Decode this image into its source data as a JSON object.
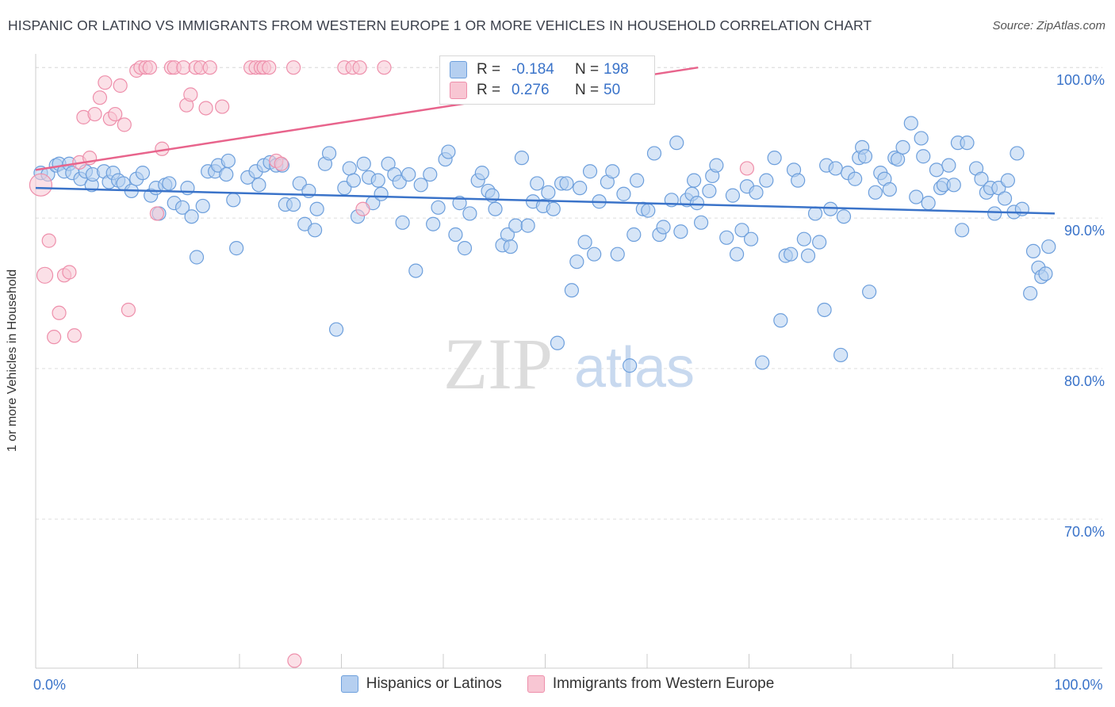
{
  "title": "HISPANIC OR LATINO VS IMMIGRANTS FROM WESTERN EUROPE 1 OR MORE VEHICLES IN HOUSEHOLD CORRELATION CHART",
  "source": "Source: ZipAtlas.com",
  "y_axis_label": "1 or more Vehicles in Household",
  "watermark": {
    "zip": "ZIP",
    "atlas": "atlas"
  },
  "legend_box": {
    "rows": [
      {
        "r_label": "R =",
        "r_value": "-0.184",
        "n_label": "N =",
        "n_value": "198",
        "color": "#6d9fdc"
      },
      {
        "r_label": "R =",
        "r_value": "0.276",
        "n_label": "N =",
        "n_value": "50",
        "color": "#ee8fab"
      }
    ]
  },
  "legend_bottom": {
    "blue": "Hispanics or Latinos",
    "pink": "Immigrants from Western Europe"
  },
  "chart_data": {
    "type": "scatter",
    "title": "HISPANIC OR LATINO VS IMMIGRANTS FROM WESTERN EUROPE 1 OR MORE VEHICLES IN HOUSEHOLD CORRELATION CHART",
    "xlabel": "",
    "ylabel": "1 or more Vehicles in Household",
    "xlim": [
      0,
      100
    ],
    "ylim": [
      60.1,
      100.8
    ],
    "x_ticks": [
      0,
      10,
      20,
      30,
      40,
      50,
      60,
      70,
      80,
      90,
      100
    ],
    "x_tick_labels": {
      "0": "0.0%",
      "100": "100.0%"
    },
    "y_ticks": [
      70,
      80,
      90,
      100
    ],
    "y_tick_labels": [
      "70.0%",
      "80.0%",
      "90.0%",
      "100.0%"
    ],
    "colors": {
      "blue": "#6d9fdc",
      "blue_fill": "#b5cff0",
      "blue_line": "#3a73c9",
      "pink": "#ee8fab",
      "pink_fill": "#f8c6d3",
      "pink_line": "#e8648c",
      "tick_label": "#3a73c9"
    },
    "series": [
      {
        "name": "Hispanics or Latinos",
        "trend": {
          "x0": 0,
          "y0": 92.0,
          "x1": 100,
          "y1": 90.3
        },
        "points": [
          [
            0.5,
            93.0
          ],
          [
            1.2,
            92.9
          ],
          [
            2,
            93.5
          ],
          [
            2.3,
            93.6
          ],
          [
            2.8,
            93.1
          ],
          [
            3.3,
            93.6
          ],
          [
            3.6,
            93.0
          ],
          [
            4.4,
            92.6
          ],
          [
            4.9,
            93.1
          ],
          [
            5.5,
            92.2
          ],
          [
            5.6,
            92.9
          ],
          [
            6.7,
            93.1
          ],
          [
            7.2,
            92.4
          ],
          [
            7.6,
            93.0
          ],
          [
            8.1,
            92.5
          ],
          [
            8.6,
            92.3
          ],
          [
            9.4,
            91.8
          ],
          [
            9.9,
            92.6
          ],
          [
            10.5,
            93.0
          ],
          [
            11.3,
            91.5
          ],
          [
            11.8,
            92.0
          ],
          [
            12.1,
            90.3
          ],
          [
            12.7,
            92.2
          ],
          [
            13.1,
            92.3
          ],
          [
            13.6,
            91.0
          ],
          [
            14.4,
            90.7
          ],
          [
            14.9,
            92.0
          ],
          [
            15.3,
            90.1
          ],
          [
            15.8,
            87.4
          ],
          [
            16.4,
            90.8
          ],
          [
            16.9,
            93.1
          ],
          [
            17.6,
            93.1
          ],
          [
            17.9,
            93.5
          ],
          [
            18.7,
            92.9
          ],
          [
            18.9,
            93.8
          ],
          [
            19.4,
            91.2
          ],
          [
            19.7,
            88.0
          ],
          [
            20.8,
            92.7
          ],
          [
            21.6,
            93.1
          ],
          [
            21.9,
            92.2
          ],
          [
            22.4,
            93.5
          ],
          [
            23,
            93.7
          ],
          [
            23.6,
            93.5
          ],
          [
            24.2,
            93.5
          ],
          [
            24.5,
            90.9
          ],
          [
            25.3,
            90.9
          ],
          [
            25.9,
            92.3
          ],
          [
            26.4,
            89.6
          ],
          [
            26.8,
            91.8
          ],
          [
            27.4,
            89.2
          ],
          [
            27.6,
            90.6
          ],
          [
            28.4,
            93.6
          ],
          [
            28.8,
            94.3
          ],
          [
            29.5,
            82.6
          ],
          [
            30.3,
            92.0
          ],
          [
            30.8,
            93.3
          ],
          [
            31.2,
            92.5
          ],
          [
            31.6,
            90.1
          ],
          [
            32.2,
            93.6
          ],
          [
            32.7,
            92.7
          ],
          [
            33.1,
            91.0
          ],
          [
            33.6,
            92.5
          ],
          [
            33.9,
            91.6
          ],
          [
            34.6,
            93.6
          ],
          [
            35.2,
            92.9
          ],
          [
            35.7,
            92.4
          ],
          [
            36,
            89.7
          ],
          [
            36.6,
            92.9
          ],
          [
            37.3,
            86.5
          ],
          [
            37.8,
            92.2
          ],
          [
            38.7,
            92.9
          ],
          [
            39,
            89.6
          ],
          [
            39.5,
            90.7
          ],
          [
            40.2,
            93.9
          ],
          [
            40.5,
            94.4
          ],
          [
            41.2,
            88.9
          ],
          [
            41.6,
            91.0
          ],
          [
            42.1,
            88.0
          ],
          [
            42.6,
            90.3
          ],
          [
            43.4,
            92.5
          ],
          [
            43.8,
            93.0
          ],
          [
            44.4,
            91.8
          ],
          [
            44.8,
            91.5
          ],
          [
            45.1,
            90.6
          ],
          [
            45.8,
            88.2
          ],
          [
            46.3,
            88.9
          ],
          [
            46.6,
            88.1
          ],
          [
            47.1,
            89.5
          ],
          [
            47.7,
            94.0
          ],
          [
            48.3,
            89.5
          ],
          [
            48.8,
            91.1
          ],
          [
            49.2,
            92.3
          ],
          [
            49.8,
            90.8
          ],
          [
            50.3,
            91.7
          ],
          [
            50.8,
            90.6
          ],
          [
            51.2,
            81.7
          ],
          [
            51.6,
            92.3
          ],
          [
            52.1,
            92.3
          ],
          [
            52.6,
            85.2
          ],
          [
            53.1,
            87.1
          ],
          [
            53.4,
            92.0
          ],
          [
            53.9,
            88.4
          ],
          [
            54.4,
            93.1
          ],
          [
            54.8,
            87.6
          ],
          [
            55.3,
            91.1
          ],
          [
            56.1,
            92.4
          ],
          [
            56.6,
            93.1
          ],
          [
            57.1,
            87.6
          ],
          [
            57.7,
            91.6
          ],
          [
            58.3,
            80.2
          ],
          [
            58.7,
            88.9
          ],
          [
            59,
            92.5
          ],
          [
            59.6,
            90.6
          ],
          [
            60.1,
            90.5
          ],
          [
            60.7,
            94.3
          ],
          [
            61.2,
            88.9
          ],
          [
            61.6,
            89.4
          ],
          [
            62.4,
            91.2
          ],
          [
            62.9,
            95.0
          ],
          [
            63.3,
            89.1
          ],
          [
            63.9,
            91.2
          ],
          [
            64.4,
            91.6
          ],
          [
            64.6,
            92.5
          ],
          [
            64.9,
            91.0
          ],
          [
            65.3,
            89.7
          ],
          [
            66.1,
            91.8
          ],
          [
            66.4,
            92.8
          ],
          [
            66.8,
            93.5
          ],
          [
            67.8,
            88.7
          ],
          [
            68.4,
            91.5
          ],
          [
            68.8,
            87.6
          ],
          [
            69.3,
            89.2
          ],
          [
            69.8,
            92.1
          ],
          [
            70.2,
            88.6
          ],
          [
            70.7,
            91.7
          ],
          [
            71.3,
            80.4
          ],
          [
            71.7,
            92.5
          ],
          [
            72.5,
            94.0
          ],
          [
            73.1,
            83.2
          ],
          [
            73.6,
            87.5
          ],
          [
            74.1,
            87.6
          ],
          [
            74.4,
            93.2
          ],
          [
            74.8,
            92.5
          ],
          [
            75.4,
            88.6
          ],
          [
            75.8,
            87.5
          ],
          [
            76.5,
            90.3
          ],
          [
            76.9,
            88.4
          ],
          [
            77.4,
            83.9
          ],
          [
            77.6,
            93.5
          ],
          [
            78,
            90.6
          ],
          [
            78.5,
            93.3
          ],
          [
            79,
            80.9
          ],
          [
            79.3,
            90.1
          ],
          [
            79.7,
            93.0
          ],
          [
            80.4,
            92.6
          ],
          [
            80.8,
            94.0
          ],
          [
            81.1,
            94.7
          ],
          [
            81.4,
            94.1
          ],
          [
            81.8,
            85.1
          ],
          [
            82.4,
            91.7
          ],
          [
            82.9,
            93.0
          ],
          [
            83.3,
            92.6
          ],
          [
            83.8,
            91.9
          ],
          [
            84.3,
            94.0
          ],
          [
            84.6,
            93.9
          ],
          [
            85.1,
            94.7
          ],
          [
            85.9,
            96.3
          ],
          [
            86.4,
            91.4
          ],
          [
            86.9,
            95.3
          ],
          [
            87.1,
            94.1
          ],
          [
            87.6,
            91.0
          ],
          [
            88.4,
            93.2
          ],
          [
            88.8,
            92.0
          ],
          [
            89.1,
            92.2
          ],
          [
            89.6,
            93.5
          ],
          [
            90.1,
            92.2
          ],
          [
            90.5,
            95.0
          ],
          [
            90.9,
            89.2
          ],
          [
            91.4,
            95.0
          ],
          [
            92.3,
            93.3
          ],
          [
            92.8,
            92.6
          ],
          [
            93.3,
            91.7
          ],
          [
            93.7,
            92.0
          ],
          [
            94.1,
            90.3
          ],
          [
            94.5,
            92.0
          ],
          [
            95.1,
            91.3
          ],
          [
            95.4,
            92.5
          ],
          [
            96,
            90.4
          ],
          [
            96.3,
            94.3
          ],
          [
            96.8,
            90.6
          ],
          [
            97.6,
            85.0
          ],
          [
            97.9,
            87.8
          ],
          [
            98.4,
            86.7
          ],
          [
            98.7,
            86.1
          ],
          [
            99.1,
            86.3
          ],
          [
            99.4,
            88.1
          ]
        ]
      },
      {
        "name": "Immigrants from Western Europe",
        "trend": {
          "x0": 0,
          "y0": 93.2,
          "x1": 65,
          "y1": 100.0
        },
        "points": [
          [
            0.5,
            92.2
          ],
          [
            0.9,
            86.2
          ],
          [
            1.3,
            88.5
          ],
          [
            1.8,
            82.1
          ],
          [
            2.3,
            83.7
          ],
          [
            2.8,
            86.2
          ],
          [
            3.3,
            86.4
          ],
          [
            3.8,
            82.2
          ],
          [
            4.3,
            93.7
          ],
          [
            4.7,
            96.7
          ],
          [
            5.3,
            94.0
          ],
          [
            5.8,
            96.9
          ],
          [
            6.3,
            98.0
          ],
          [
            6.8,
            99.0
          ],
          [
            7.3,
            96.6
          ],
          [
            7.8,
            96.9
          ],
          [
            8.3,
            98.8
          ],
          [
            8.7,
            96.2
          ],
          [
            9.1,
            83.9
          ],
          [
            9.9,
            99.8
          ],
          [
            10.3,
            100.0
          ],
          [
            10.8,
            100.0
          ],
          [
            11.2,
            100.0
          ],
          [
            11.9,
            90.3
          ],
          [
            12.4,
            94.6
          ],
          [
            13.3,
            100.0
          ],
          [
            13.6,
            100.0
          ],
          [
            14.5,
            100.0
          ],
          [
            14.8,
            97.5
          ],
          [
            15.2,
            98.2
          ],
          [
            15.7,
            100.0
          ],
          [
            16.2,
            100.0
          ],
          [
            16.7,
            97.3
          ],
          [
            17.1,
            100.0
          ],
          [
            18.3,
            97.4
          ],
          [
            21.1,
            100.0
          ],
          [
            21.6,
            100.0
          ],
          [
            22.1,
            100.0
          ],
          [
            22.4,
            100.0
          ],
          [
            22.9,
            100.0
          ],
          [
            23.6,
            93.8
          ],
          [
            24.1,
            93.6
          ],
          [
            25.3,
            100.0
          ],
          [
            25.4,
            60.6
          ],
          [
            30.3,
            100.0
          ],
          [
            31.1,
            100.0
          ],
          [
            31.8,
            100.0
          ],
          [
            32.1,
            90.6
          ],
          [
            34.2,
            100.0
          ],
          [
            69.8,
            93.3
          ]
        ]
      }
    ]
  }
}
